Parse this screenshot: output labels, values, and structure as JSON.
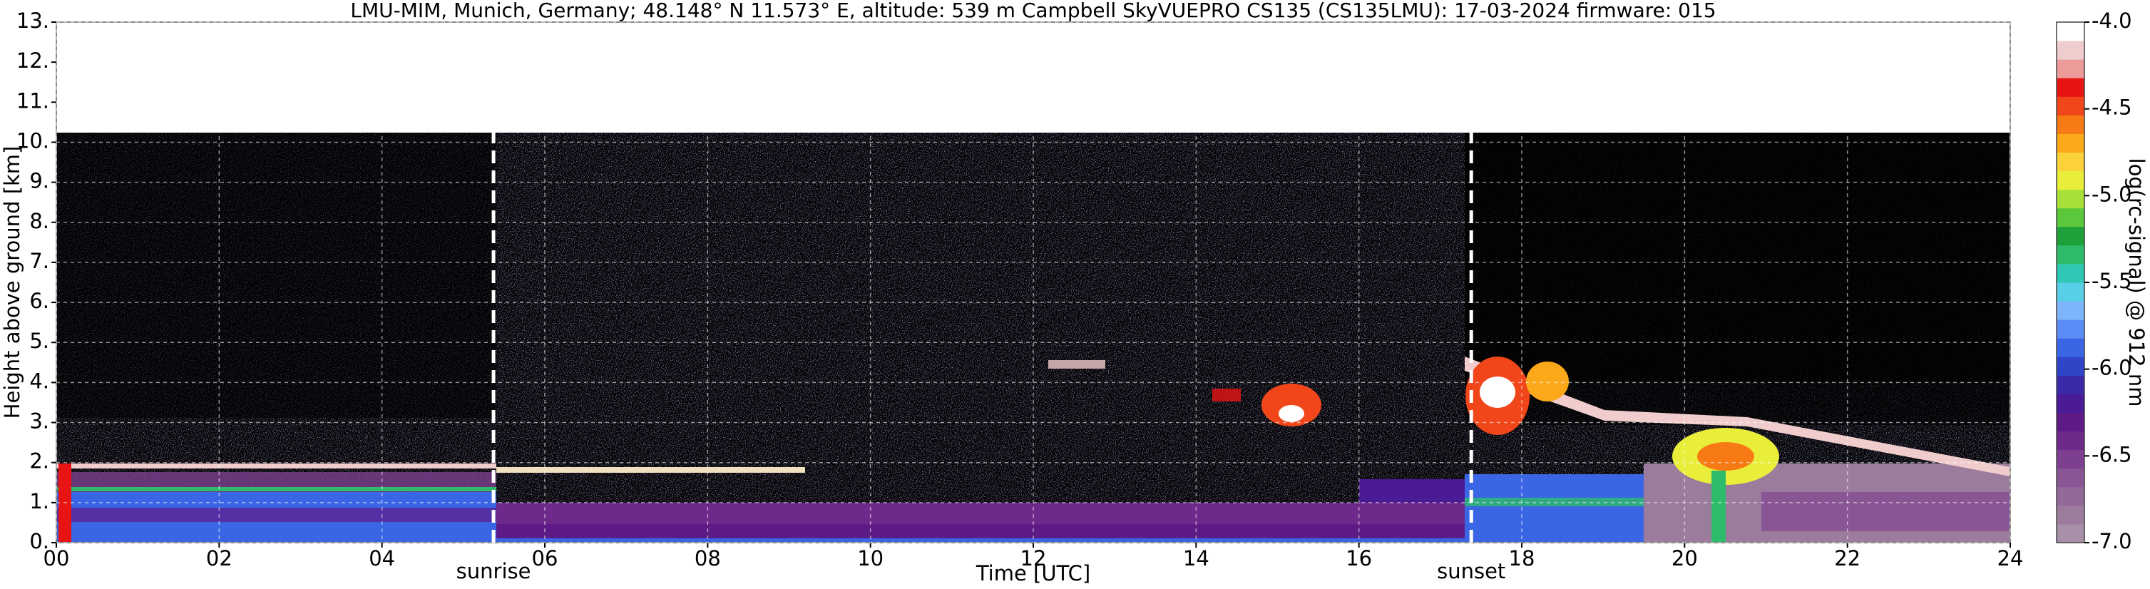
{
  "chart_data": {
    "type": "heatmap",
    "title": "LMU-MIM, Munich, Germany; 48.148° N 11.573° E, altitude: 539 m    Campbell SkyVUEPRO CS135 (CS135LMU): 17-03-2024    firmware: 015",
    "xlabel": "Time [UTC]",
    "ylabel": "Height above ground [km]",
    "xlim": [
      0,
      24
    ],
    "ylim": [
      0,
      13
    ],
    "xticks": [
      {
        "value": 0,
        "label": "00"
      },
      {
        "value": 2,
        "label": "02"
      },
      {
        "value": 4,
        "label": "04"
      },
      {
        "value": 6,
        "label": "06"
      },
      {
        "value": 8,
        "label": "08"
      },
      {
        "value": 10,
        "label": "10"
      },
      {
        "value": 12,
        "label": "12"
      },
      {
        "value": 14,
        "label": "14"
      },
      {
        "value": 16,
        "label": "16"
      },
      {
        "value": 18,
        "label": "18"
      },
      {
        "value": 20,
        "label": "20"
      },
      {
        "value": 22,
        "label": "22"
      },
      {
        "value": 24,
        "label": "24"
      }
    ],
    "yticks": [
      {
        "value": 0,
        "label": "0."
      },
      {
        "value": 1,
        "label": "1."
      },
      {
        "value": 2,
        "label": "2."
      },
      {
        "value": 3,
        "label": "3."
      },
      {
        "value": 4,
        "label": "4."
      },
      {
        "value": 5,
        "label": "5."
      },
      {
        "value": 6,
        "label": "6."
      },
      {
        "value": 7,
        "label": "7."
      },
      {
        "value": 8,
        "label": "8."
      },
      {
        "value": 9,
        "label": "9."
      },
      {
        "value": 10,
        "label": "10."
      },
      {
        "value": 11,
        "label": "11."
      },
      {
        "value": 12,
        "label": "12."
      },
      {
        "value": 13,
        "label": "13."
      }
    ],
    "grid": true,
    "annotations": [
      {
        "x": 5.37,
        "text": "sunrise"
      },
      {
        "x": 17.38,
        "text": "sunset"
      }
    ],
    "colorbar": {
      "label": "log(rc-signal) @ 912 nm",
      "lim": [
        -7,
        -4
      ],
      "ticks": [
        {
          "value": -7,
          "label": "-7.0"
        },
        {
          "value": -6.5,
          "label": "-6.5"
        },
        {
          "value": -6,
          "label": "-6.0"
        },
        {
          "value": -5.5,
          "label": "-5.5"
        },
        {
          "value": -5,
          "label": "-5.0"
        },
        {
          "value": -4.5,
          "label": "-4.5"
        },
        {
          "value": -4,
          "label": "-4.0"
        }
      ],
      "colors": [
        "#a78fa7",
        "#9c7c9c",
        "#93699a",
        "#8a5595",
        "#7d3f8f",
        "#6e2a8a",
        "#5e1a86",
        "#4b1a96",
        "#3a2aa8",
        "#2f45c8",
        "#3a66e6",
        "#5b8cf5",
        "#7db4fa",
        "#57cfe6",
        "#2fc8b4",
        "#2ebc6a",
        "#1ea03a",
        "#5ac83a",
        "#a8e03a",
        "#e8ee3a",
        "#fbd23a",
        "#fba81a",
        "#f87a14",
        "#f0461a",
        "#e81414",
        "#ec9a9a",
        "#f0cccc",
        "#ffffff"
      ]
    }
  }
}
